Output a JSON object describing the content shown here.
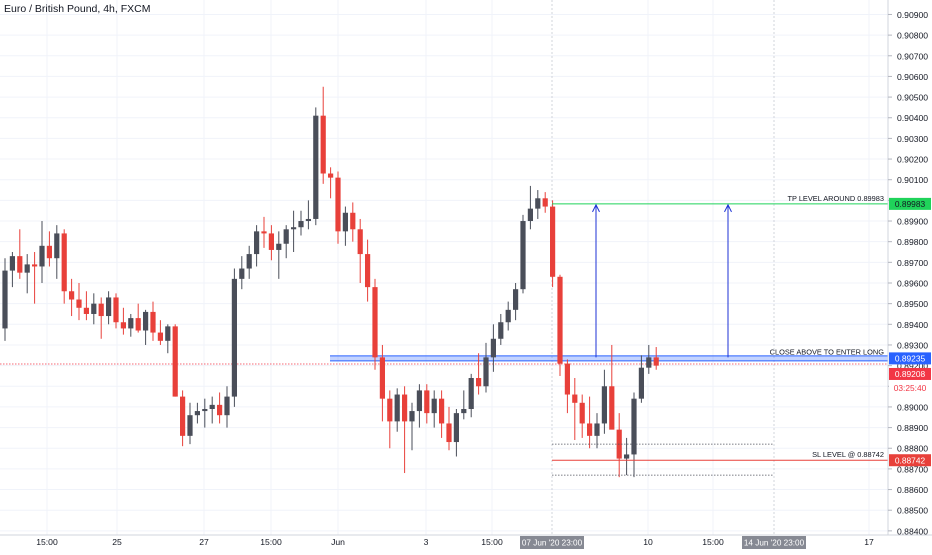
{
  "header": {
    "title": "Euro / British Pound, 4h, FXCM"
  },
  "colors": {
    "bull": "#4a4e59",
    "bear": "#e8403a",
    "grid": "#f0f3fa",
    "axis_text": "#131722",
    "price_line": "#f23645",
    "entry_band": "#2962ff",
    "tp_line": "#1fd35a",
    "sl_line": "#e8403a",
    "arrow": "#1c32d6"
  },
  "chart_data": {
    "type": "candlestick",
    "symbol": "EURGBP",
    "timeframe": "4h",
    "ylim": [
      0.8838,
      0.9097
    ],
    "y_ticks": [
      "0.90900",
      "0.90800",
      "0.90700",
      "0.90600",
      "0.90500",
      "0.90400",
      "0.90300",
      "0.90200",
      "0.90100",
      "0.90000",
      "0.89900",
      "0.89800",
      "0.89700",
      "0.89600",
      "0.89500",
      "0.89400",
      "0.89300",
      "0.89200",
      "0.89100",
      "0.89000",
      "0.88900",
      "0.88800",
      "0.88700",
      "0.88600",
      "0.88500",
      "0.88400"
    ],
    "x_ticks": [
      "15:00",
      "25",
      "27",
      "15:00",
      "Jun",
      "3",
      "15:00",
      "10",
      "15:00",
      "17"
    ],
    "x_highlights": [
      "07 Jun '20 23:00",
      "14 Jun '20 23:00"
    ],
    "candles": [
      {
        "o": 0.8938,
        "h": 0.8972,
        "l": 0.8932,
        "c": 0.8966
      },
      {
        "o": 0.8966,
        "h": 0.8975,
        "l": 0.8958,
        "c": 0.8973
      },
      {
        "o": 0.8973,
        "h": 0.8986,
        "l": 0.8962,
        "c": 0.8965
      },
      {
        "o": 0.8965,
        "h": 0.8974,
        "l": 0.8955,
        "c": 0.8969
      },
      {
        "o": 0.8969,
        "h": 0.8975,
        "l": 0.895,
        "c": 0.8968
      },
      {
        "o": 0.8968,
        "h": 0.899,
        "l": 0.896,
        "c": 0.8978
      },
      {
        "o": 0.8978,
        "h": 0.8985,
        "l": 0.8968,
        "c": 0.8972
      },
      {
        "o": 0.8972,
        "h": 0.8988,
        "l": 0.8962,
        "c": 0.8984
      },
      {
        "o": 0.8984,
        "h": 0.8986,
        "l": 0.895,
        "c": 0.8956
      },
      {
        "o": 0.8956,
        "h": 0.8962,
        "l": 0.8944,
        "c": 0.8952
      },
      {
        "o": 0.8952,
        "h": 0.896,
        "l": 0.8942,
        "c": 0.8948
      },
      {
        "o": 0.8948,
        "h": 0.8956,
        "l": 0.8942,
        "c": 0.8945
      },
      {
        "o": 0.8945,
        "h": 0.8955,
        "l": 0.894,
        "c": 0.895
      },
      {
        "o": 0.895,
        "h": 0.8953,
        "l": 0.8933,
        "c": 0.8944
      },
      {
        "o": 0.8944,
        "h": 0.8956,
        "l": 0.894,
        "c": 0.8953
      },
      {
        "o": 0.8953,
        "h": 0.8955,
        "l": 0.8938,
        "c": 0.8941
      },
      {
        "o": 0.8941,
        "h": 0.8948,
        "l": 0.8935,
        "c": 0.8938
      },
      {
        "o": 0.8938,
        "h": 0.8945,
        "l": 0.8934,
        "c": 0.8943
      },
      {
        "o": 0.8943,
        "h": 0.895,
        "l": 0.8936,
        "c": 0.8937
      },
      {
        "o": 0.8937,
        "h": 0.8947,
        "l": 0.893,
        "c": 0.8946
      },
      {
        "o": 0.8946,
        "h": 0.8951,
        "l": 0.8932,
        "c": 0.8936
      },
      {
        "o": 0.8936,
        "h": 0.8942,
        "l": 0.893,
        "c": 0.8932
      },
      {
        "o": 0.8932,
        "h": 0.894,
        "l": 0.8926,
        "c": 0.8939
      },
      {
        "o": 0.8939,
        "h": 0.894,
        "l": 0.8905,
        "c": 0.8905
      },
      {
        "o": 0.8905,
        "h": 0.8908,
        "l": 0.8881,
        "c": 0.8886
      },
      {
        "o": 0.8886,
        "h": 0.8902,
        "l": 0.8882,
        "c": 0.8896
      },
      {
        "o": 0.8896,
        "h": 0.8902,
        "l": 0.8892,
        "c": 0.8898
      },
      {
        "o": 0.8898,
        "h": 0.8904,
        "l": 0.889,
        "c": 0.8899
      },
      {
        "o": 0.8899,
        "h": 0.8905,
        "l": 0.8892,
        "c": 0.8901
      },
      {
        "o": 0.8901,
        "h": 0.8907,
        "l": 0.8892,
        "c": 0.8896
      },
      {
        "o": 0.8896,
        "h": 0.891,
        "l": 0.889,
        "c": 0.8905
      },
      {
        "o": 0.8905,
        "h": 0.8967,
        "l": 0.89,
        "c": 0.8962
      },
      {
        "o": 0.8962,
        "h": 0.8973,
        "l": 0.8957,
        "c": 0.8967
      },
      {
        "o": 0.8967,
        "h": 0.8978,
        "l": 0.8962,
        "c": 0.8974
      },
      {
        "o": 0.8974,
        "h": 0.8988,
        "l": 0.8968,
        "c": 0.8985
      },
      {
        "o": 0.8985,
        "h": 0.8992,
        "l": 0.8977,
        "c": 0.8984
      },
      {
        "o": 0.8984,
        "h": 0.8988,
        "l": 0.8971,
        "c": 0.8976
      },
      {
        "o": 0.8976,
        "h": 0.8985,
        "l": 0.8962,
        "c": 0.8979
      },
      {
        "o": 0.8979,
        "h": 0.8988,
        "l": 0.8972,
        "c": 0.8986
      },
      {
        "o": 0.8986,
        "h": 0.8995,
        "l": 0.8975,
        "c": 0.8987
      },
      {
        "o": 0.8987,
        "h": 0.8995,
        "l": 0.8983,
        "c": 0.899
      },
      {
        "o": 0.899,
        "h": 0.9,
        "l": 0.8986,
        "c": 0.8991
      },
      {
        "o": 0.8991,
        "h": 0.9045,
        "l": 0.8988,
        "c": 0.9041
      },
      {
        "o": 0.9041,
        "h": 0.9055,
        "l": 0.9008,
        "c": 0.9013
      },
      {
        "o": 0.9013,
        "h": 0.9016,
        "l": 0.9001,
        "c": 0.9011
      },
      {
        "o": 0.9011,
        "h": 0.9014,
        "l": 0.8979,
        "c": 0.8985
      },
      {
        "o": 0.8985,
        "h": 0.8997,
        "l": 0.8978,
        "c": 0.8994
      },
      {
        "o": 0.8994,
        "h": 0.8999,
        "l": 0.898,
        "c": 0.8986
      },
      {
        "o": 0.8986,
        "h": 0.8991,
        "l": 0.896,
        "c": 0.8974
      },
      {
        "o": 0.8974,
        "h": 0.8981,
        "l": 0.8951,
        "c": 0.8958
      },
      {
        "o": 0.8958,
        "h": 0.8962,
        "l": 0.8918,
        "c": 0.8924
      },
      {
        "o": 0.8924,
        "h": 0.893,
        "l": 0.8893,
        "c": 0.8904
      },
      {
        "o": 0.8904,
        "h": 0.8908,
        "l": 0.888,
        "c": 0.8893
      },
      {
        "o": 0.8893,
        "h": 0.8909,
        "l": 0.8888,
        "c": 0.8906
      },
      {
        "o": 0.8906,
        "h": 0.891,
        "l": 0.8868,
        "c": 0.8893
      },
      {
        "o": 0.8893,
        "h": 0.8902,
        "l": 0.8879,
        "c": 0.8898
      },
      {
        "o": 0.8898,
        "h": 0.8911,
        "l": 0.889,
        "c": 0.8908
      },
      {
        "o": 0.8908,
        "h": 0.8911,
        "l": 0.8892,
        "c": 0.8897
      },
      {
        "o": 0.8897,
        "h": 0.8908,
        "l": 0.889,
        "c": 0.8904
      },
      {
        "o": 0.8904,
        "h": 0.8908,
        "l": 0.8885,
        "c": 0.8892
      },
      {
        "o": 0.8892,
        "h": 0.89,
        "l": 0.8879,
        "c": 0.8883
      },
      {
        "o": 0.8883,
        "h": 0.8899,
        "l": 0.8876,
        "c": 0.8897
      },
      {
        "o": 0.8897,
        "h": 0.8908,
        "l": 0.8894,
        "c": 0.8899
      },
      {
        "o": 0.8899,
        "h": 0.8916,
        "l": 0.8895,
        "c": 0.8914
      },
      {
        "o": 0.8914,
        "h": 0.8926,
        "l": 0.8906,
        "c": 0.891
      },
      {
        "o": 0.891,
        "h": 0.8931,
        "l": 0.8907,
        "c": 0.8924
      },
      {
        "o": 0.8924,
        "h": 0.894,
        "l": 0.8917,
        "c": 0.8933
      },
      {
        "o": 0.8933,
        "h": 0.8945,
        "l": 0.893,
        "c": 0.8941
      },
      {
        "o": 0.8941,
        "h": 0.8951,
        "l": 0.8937,
        "c": 0.8947
      },
      {
        "o": 0.8947,
        "h": 0.896,
        "l": 0.8942,
        "c": 0.8957
      },
      {
        "o": 0.8957,
        "h": 0.8993,
        "l": 0.8955,
        "c": 0.899
      },
      {
        "o": 0.899,
        "h": 0.9007,
        "l": 0.8986,
        "c": 0.8996
      },
      {
        "o": 0.8996,
        "h": 0.9005,
        "l": 0.8991,
        "c": 0.9001
      },
      {
        "o": 0.9001,
        "h": 0.9004,
        "l": 0.8994,
        "c": 0.8997
      },
      {
        "o": 0.8997,
        "h": 0.9,
        "l": 0.8958,
        "c": 0.8963
      },
      {
        "o": 0.8963,
        "h": 0.8964,
        "l": 0.8915,
        "c": 0.8921
      },
      {
        "o": 0.8921,
        "h": 0.8923,
        "l": 0.8897,
        "c": 0.8906
      },
      {
        "o": 0.8906,
        "h": 0.8914,
        "l": 0.8884,
        "c": 0.8902
      },
      {
        "o": 0.8902,
        "h": 0.8906,
        "l": 0.8885,
        "c": 0.8892
      },
      {
        "o": 0.8892,
        "h": 0.8905,
        "l": 0.888,
        "c": 0.8886
      },
      {
        "o": 0.8886,
        "h": 0.8897,
        "l": 0.888,
        "c": 0.8892
      },
      {
        "o": 0.8892,
        "h": 0.8918,
        "l": 0.8887,
        "c": 0.891
      },
      {
        "o": 0.891,
        "h": 0.893,
        "l": 0.889,
        "c": 0.8889
      },
      {
        "o": 0.8889,
        "h": 0.8897,
        "l": 0.8866,
        "c": 0.8875
      },
      {
        "o": 0.8875,
        "h": 0.8885,
        "l": 0.8867,
        "c": 0.8877
      },
      {
        "o": 0.8877,
        "h": 0.8907,
        "l": 0.8866,
        "c": 0.8904
      },
      {
        "o": 0.8904,
        "h": 0.8925,
        "l": 0.8902,
        "c": 0.8919
      },
      {
        "o": 0.8919,
        "h": 0.893,
        "l": 0.8916,
        "c": 0.8924
      },
      {
        "o": 0.8924,
        "h": 0.8929,
        "l": 0.8918,
        "c": 0.892
      }
    ],
    "annotations": {
      "entry": {
        "label": "CLOSE ABOVE TO ENTER LONG",
        "price": 0.89235,
        "price_label": "0.89235"
      },
      "current_price": {
        "price": 0.89208,
        "price_label": "0.89208",
        "countdown": "03:25:40"
      },
      "tp": {
        "label": "TP LEVEL AROUND 0.89983",
        "price": 0.89983,
        "price_label": "0.89983"
      },
      "sl": {
        "label": "SL LEVEL @ 0.88742",
        "price": 0.88742,
        "price_label": "0.88742"
      },
      "box_top": 0.8882,
      "box_bottom": 0.8867
    }
  }
}
